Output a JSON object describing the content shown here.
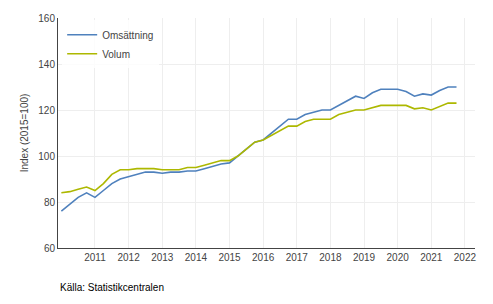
{
  "chart_data": {
    "type": "line",
    "ylabel": "Index (2015=100)",
    "source": "Källa: Statistikcentralen",
    "x": [
      2010.0,
      2010.25,
      2010.5,
      2010.75,
      2011.0,
      2011.25,
      2011.5,
      2011.75,
      2012.0,
      2012.25,
      2012.5,
      2012.75,
      2013.0,
      2013.25,
      2013.5,
      2013.75,
      2014.0,
      2014.25,
      2014.5,
      2014.75,
      2015.0,
      2015.25,
      2015.5,
      2015.75,
      2016.0,
      2016.25,
      2016.5,
      2016.75,
      2017.0,
      2017.25,
      2017.5,
      2017.75,
      2018.0,
      2018.25,
      2018.5,
      2018.75,
      2019.0,
      2019.25,
      2019.5,
      2019.75,
      2020.0,
      2020.25,
      2020.5,
      2020.75,
      2021.0,
      2021.25,
      2021.5,
      2021.75
    ],
    "series": [
      {
        "name": "Omsättning",
        "color": "#4f81bd",
        "values": [
          76.0,
          79.0,
          82.0,
          84.0,
          82.0,
          85.0,
          88.0,
          90.0,
          91.0,
          92.0,
          93.0,
          93.0,
          92.5,
          93.0,
          93.0,
          93.5,
          93.5,
          94.5,
          95.5,
          96.5,
          97.0,
          100.0,
          103.0,
          106.0,
          107.0,
          110.0,
          113.0,
          116.0,
          116.0,
          118.0,
          119.0,
          120.0,
          120.0,
          122.0,
          124.0,
          126.0,
          125.0,
          127.5,
          129.0,
          129.0,
          129.0,
          128.0,
          126.0,
          127.0,
          126.5,
          128.5,
          130.0,
          130.0
        ]
      },
      {
        "name": "Volum",
        "color": "#adb800",
        "values": [
          84.0,
          84.5,
          85.5,
          86.5,
          85.0,
          88.0,
          92.0,
          94.0,
          94.0,
          94.5,
          94.5,
          94.5,
          94.0,
          94.0,
          94.0,
          95.0,
          95.0,
          96.0,
          97.0,
          98.0,
          98.0,
          100.0,
          103.0,
          106.0,
          107.0,
          109.0,
          111.0,
          113.0,
          113.0,
          115.0,
          116.0,
          116.0,
          116.0,
          118.0,
          119.0,
          120.0,
          120.0,
          121.0,
          122.0,
          122.0,
          122.0,
          122.0,
          120.5,
          121.0,
          120.0,
          121.5,
          123.0,
          123.0
        ]
      }
    ],
    "xlim": [
      2009.9,
      2022.3
    ],
    "xticks": [
      2011,
      2012,
      2013,
      2014,
      2015,
      2016,
      2017,
      2018,
      2019,
      2020,
      2021,
      2022
    ],
    "ylim": [
      60,
      160
    ],
    "yticks": [
      60,
      80,
      100,
      120,
      140,
      160
    ],
    "grid": true,
    "legend": "upper left"
  }
}
